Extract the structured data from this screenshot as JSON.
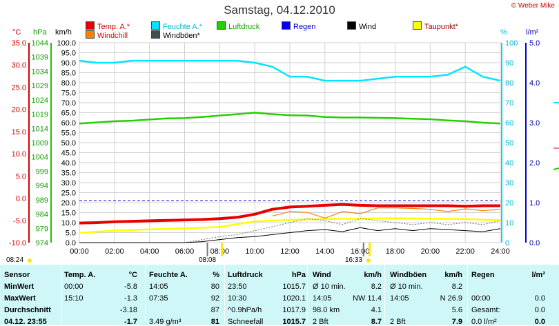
{
  "header": {
    "title": "Samstag, 04.12.2010",
    "copyright": "© Weber Mike"
  },
  "units": {
    "temp": "°C",
    "pressure": "hPa",
    "wind": "km/h",
    "percent": "%",
    "rain": "l/m²"
  },
  "legend": [
    {
      "label": "Temp. A.*",
      "color": "#e60000"
    },
    {
      "label": "Feuchte A.*",
      "color": "#00e5ff"
    },
    {
      "label": "Luftdruck",
      "color": "#22d000"
    },
    {
      "label": "Regen",
      "color": "#0000ee"
    },
    {
      "label": "Wind",
      "color": "#000000"
    },
    {
      "label": "Taupunkt*",
      "color": "#ffff00"
    },
    {
      "label": "Windchill",
      "color": "#ff7f00"
    },
    {
      "label": "Windböen*",
      "color": "#405050"
    }
  ],
  "markers": {
    "sunrise": "08:24",
    "sunrise2": "08:08",
    "sunset": "16:33"
  },
  "chart_data": {
    "type": "line",
    "title": "Samstag, 04.12.2010",
    "x_ticks": [
      "00:00",
      "02:00",
      "04:00",
      "06:00",
      "08:00",
      "10:00",
      "12:00",
      "14:00",
      "16:00",
      "18:00",
      "20:00",
      "22:00",
      "24:00"
    ],
    "axes": {
      "temp": {
        "label": "°C",
        "range": [
          -10,
          35
        ],
        "ticks": [
          "35.0",
          "30.0",
          "25.0",
          "20.0",
          "15.0",
          "10.0",
          "5.0",
          "0.0",
          "-5.0",
          "-10.0"
        ]
      },
      "pressure": {
        "label": "hPa",
        "range": [
          974,
          1044
        ],
        "ticks": [
          "1044",
          "1039",
          "1034",
          "1029",
          "1024",
          "1019",
          "1014",
          "1009",
          "1004",
          "999",
          "994",
          "989",
          "984",
          "979",
          "974"
        ]
      },
      "wind": {
        "label": "km/h",
        "range": [
          0,
          100
        ],
        "ticks": [
          "100.0",
          "95.0",
          "90.0",
          "85.0",
          "80.0",
          "75.0",
          "70.0",
          "65.0",
          "60.0",
          "55.0",
          "50.0",
          "45.0",
          "40.0",
          "35.0",
          "30.0",
          "25.0",
          "20.0",
          "15.0",
          "10.0",
          "5.0",
          "0.0"
        ]
      },
      "humidity": {
        "label": "%",
        "range": [
          0,
          100
        ],
        "ticks": [
          "100",
          "90",
          "80",
          "70",
          "60",
          "50",
          "40",
          "30",
          "20",
          "10",
          "0"
        ]
      },
      "rain": {
        "label": "l/m²",
        "range": [
          0,
          5
        ],
        "ticks": [
          "5.0",
          "4.0",
          "3.0",
          "2.0",
          "1.0",
          "0.0"
        ]
      }
    },
    "series": [
      {
        "name": "Temp. A.*",
        "axis": "temp",
        "x": [
          0,
          1,
          2,
          3,
          4,
          5,
          6,
          7,
          8,
          9,
          10,
          11,
          12,
          13,
          14,
          15,
          16,
          17,
          18,
          19,
          20,
          21,
          22,
          23,
          24
        ],
        "values": [
          -5.6,
          -5.5,
          -5.3,
          -5.2,
          -5.1,
          -5.0,
          -4.9,
          -4.8,
          -4.6,
          -4.3,
          -3.6,
          -2.5,
          -2.0,
          -1.8,
          -1.6,
          -1.4,
          -1.6,
          -1.7,
          -1.7,
          -1.7,
          -1.7,
          -1.7,
          -1.8,
          -1.7,
          -1.7
        ]
      },
      {
        "name": "Feuchte A.*",
        "axis": "humidity",
        "x": [
          0,
          1,
          2,
          3,
          4,
          5,
          6,
          7,
          8,
          9,
          10,
          11,
          12,
          13,
          14,
          15,
          16,
          17,
          18,
          19,
          20,
          21,
          22,
          23,
          24
        ],
        "values": [
          91,
          90,
          90,
          91,
          91,
          91,
          91,
          91,
          91,
          91,
          90,
          88,
          83,
          83,
          81,
          81,
          81,
          82,
          83,
          83,
          83,
          84,
          88,
          83,
          81
        ]
      },
      {
        "name": "Luftdruck",
        "axis": "pressure",
        "x": [
          0,
          1,
          2,
          3,
          4,
          5,
          6,
          7,
          8,
          9,
          10,
          11,
          12,
          13,
          14,
          15,
          16,
          17,
          18,
          19,
          20,
          21,
          22,
          23,
          24
        ],
        "values": [
          1015.7,
          1016.1,
          1016.5,
          1016.7,
          1017.1,
          1017.5,
          1017.6,
          1018.0,
          1018.5,
          1019.0,
          1019.5,
          1019.0,
          1018.6,
          1018.5,
          1018.0,
          1017.8,
          1017.8,
          1017.7,
          1017.6,
          1017.4,
          1017.2,
          1016.8,
          1016.5,
          1016.0,
          1015.7
        ]
      },
      {
        "name": "Taupunkt*",
        "axis": "temp",
        "x": [
          0,
          2,
          4,
          6,
          8,
          10,
          12,
          14,
          16,
          18,
          20,
          22,
          24
        ],
        "values": [
          -7.8,
          -7.3,
          -7.0,
          -6.8,
          -6.5,
          -5.2,
          -4.9,
          -4.7,
          -4.6,
          -4.5,
          -4.6,
          -4.7,
          -5.0
        ]
      },
      {
        "name": "Windchill",
        "axis": "temp",
        "x": [
          11,
          12,
          13,
          14,
          15,
          16,
          17,
          18,
          19,
          20,
          21,
          22,
          23,
          24
        ],
        "values": [
          -4.0,
          -3.0,
          -3.2,
          -4.5,
          -3.0,
          -3.5,
          -2.2,
          -2.2,
          -2.3,
          -2.5,
          -3.0,
          -2.4,
          -2.8,
          -2.5
        ]
      },
      {
        "name": "Wind",
        "axis": "wind",
        "x": [
          0,
          2,
          4,
          6,
          7,
          8,
          9,
          10,
          11,
          12,
          13,
          14,
          15,
          16,
          17,
          18,
          19,
          20,
          21,
          22,
          23,
          24
        ],
        "values": [
          0,
          0,
          0,
          0,
          0.5,
          1.5,
          2.5,
          3.0,
          4.0,
          5.0,
          6.0,
          6.5,
          5.5,
          7.5,
          6.0,
          7.0,
          6.0,
          7.0,
          6.5,
          6.0,
          5.5,
          7.0
        ]
      },
      {
        "name": "Windböen*",
        "axis": "wind",
        "x": [
          6,
          8,
          9,
          10,
          11,
          12,
          13,
          14,
          15,
          16,
          17,
          18,
          19,
          20,
          21,
          22,
          23,
          24
        ],
        "values": [
          0,
          3,
          4,
          6,
          8,
          10,
          12,
          11,
          9,
          12,
          11,
          10,
          9,
          10,
          9,
          10,
          9,
          11
        ]
      }
    ],
    "reference_line": {
      "axis": "humidity",
      "value": 21,
      "style": "dashed",
      "color": "#0000cc"
    }
  },
  "table": {
    "headers": [
      "Sensor",
      "Temp. A.",
      "°C",
      "Feuchte A.",
      "%",
      "Luftdruck",
      "hPa",
      "Wind",
      "km/h",
      "Windböen",
      "km/h",
      "Regen",
      "l/m²"
    ],
    "rows": [
      {
        "label": "MinWert",
        "cells": [
          "00:00",
          "-5.8",
          "14:05",
          "80",
          "23:50",
          "1015.7",
          "Ø 10 min.",
          "8.2",
          "Ø 10 min.",
          "8.2",
          "",
          ""
        ]
      },
      {
        "label": "MaxWert",
        "cells": [
          "15:10",
          "-1.3",
          "07:35",
          "92",
          "10:30",
          "1020.1",
          "14:05",
          "NW 11.4",
          "14:05",
          "N 26.9",
          "00:00",
          "0.0"
        ]
      },
      {
        "label": "Durchschnitt",
        "cells": [
          "",
          "-3.18",
          "",
          "87",
          "^0.9hPa/h",
          "1017.9",
          "98.0 km",
          "4.1",
          "",
          "5.6",
          "Gesamt:",
          "0.0"
        ]
      },
      {
        "label": "04.12. 23:55",
        "cells": [
          "",
          "-1.7",
          "3.49 g/m³",
          "81",
          "Schneefall",
          "1015.7",
          "2 Bft",
          "8.7",
          "2 Bft",
          "7.9",
          "0.0 l/m²",
          "0.0"
        ]
      }
    ]
  }
}
